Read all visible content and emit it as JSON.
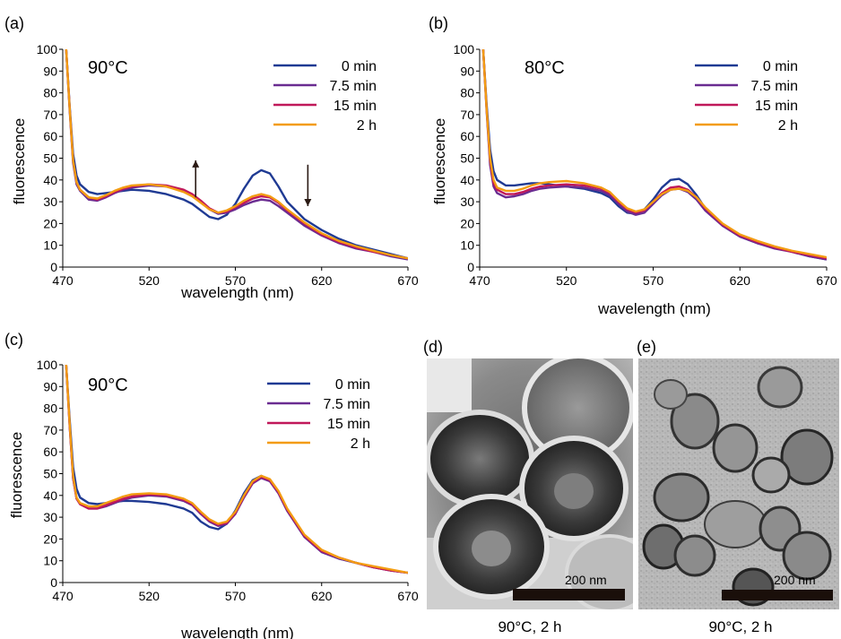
{
  "chart_data": [
    {
      "panel": "(a)",
      "type": "line",
      "annotation": "90°C",
      "xlabel": "wavelength (nm)",
      "ylabel": "fluorescence",
      "xlim": [
        470,
        670
      ],
      "ylim": [
        0,
        100
      ],
      "xticks": [
        470,
        520,
        570,
        620,
        670
      ],
      "yticks": [
        0,
        10,
        20,
        30,
        40,
        50,
        60,
        70,
        80,
        90,
        100
      ],
      "arrows": [
        {
          "direction": "up",
          "x": 547,
          "y_from": 32,
          "y_to": 49
        },
        {
          "direction": "down",
          "x": 612,
          "y_from": 47,
          "y_to": 28
        }
      ],
      "series": [
        {
          "name": "0 min",
          "color": "#1f3a93",
          "x": [
            472,
            474,
            476,
            478,
            480,
            485,
            490,
            495,
            500,
            505,
            510,
            520,
            530,
            540,
            545,
            550,
            555,
            560,
            565,
            570,
            575,
            580,
            585,
            590,
            595,
            600,
            610,
            620,
            630,
            640,
            650,
            660,
            670
          ],
          "y": [
            100,
            74,
            52,
            42,
            38,
            34.5,
            33.5,
            34,
            34.5,
            35,
            35.5,
            35,
            33.5,
            31,
            29,
            26,
            23,
            22,
            24,
            29,
            36,
            42,
            44.5,
            43,
            37,
            30,
            22,
            17,
            13,
            10,
            8,
            6,
            4
          ]
        },
        {
          "name": "7.5 min",
          "color": "#6a2c91",
          "x": [
            472,
            474,
            476,
            478,
            480,
            485,
            490,
            495,
            500,
            505,
            510,
            520,
            530,
            540,
            545,
            550,
            555,
            560,
            565,
            570,
            575,
            580,
            585,
            590,
            595,
            600,
            610,
            620,
            630,
            640,
            650,
            660,
            670
          ],
          "y": [
            100,
            72,
            48,
            38,
            35,
            31,
            30.5,
            32,
            34,
            35.5,
            36.5,
            37.5,
            37,
            35,
            33,
            30,
            26.5,
            24.5,
            25,
            26.5,
            28.5,
            30,
            31,
            30.5,
            28,
            25,
            19,
            14.5,
            11,
            8.5,
            7,
            5,
            3.5
          ]
        },
        {
          "name": "15 min",
          "color": "#c0185a",
          "x": [
            472,
            474,
            476,
            478,
            480,
            485,
            490,
            495,
            500,
            505,
            510,
            520,
            530,
            540,
            545,
            550,
            555,
            560,
            565,
            570,
            575,
            580,
            585,
            590,
            595,
            600,
            610,
            620,
            630,
            640,
            650,
            660,
            670
          ],
          "y": [
            100,
            73,
            49,
            39,
            35.5,
            32,
            31,
            32.5,
            34.5,
            36,
            37,
            38,
            37.5,
            35.5,
            33.5,
            30.5,
            27,
            25,
            25.5,
            27.5,
            29.5,
            31.5,
            32.5,
            32,
            29.5,
            26,
            20,
            15,
            11.5,
            9,
            7,
            5.5,
            4
          ]
        },
        {
          "name": "2 h",
          "color": "#f39c12",
          "x": [
            472,
            474,
            476,
            478,
            480,
            485,
            490,
            495,
            500,
            505,
            510,
            520,
            530,
            540,
            545,
            550,
            555,
            560,
            565,
            570,
            575,
            580,
            585,
            590,
            595,
            600,
            610,
            620,
            630,
            640,
            650,
            660,
            670
          ],
          "y": [
            100,
            73,
            49,
            39,
            35.5,
            32,
            31.5,
            33,
            35,
            36.5,
            37.5,
            38,
            37,
            34.5,
            32.5,
            29.5,
            26.5,
            25,
            26,
            28,
            30.5,
            32.5,
            33.5,
            32.5,
            30,
            26.5,
            20.5,
            15.5,
            12,
            9.5,
            7.5,
            5.5,
            4
          ]
        }
      ]
    },
    {
      "panel": "(b)",
      "type": "line",
      "annotation": "80°C",
      "xlabel": "wavelength (nm)",
      "ylabel": "fluorescence",
      "xlim": [
        470,
        670
      ],
      "ylim": [
        0,
        100
      ],
      "xticks": [
        470,
        520,
        570,
        620,
        670
      ],
      "yticks": [
        0,
        10,
        20,
        30,
        40,
        50,
        60,
        70,
        80,
        90,
        100
      ],
      "series": [
        {
          "name": "0 min",
          "color": "#1f3a93",
          "x": [
            472,
            474,
            476,
            478,
            480,
            485,
            490,
            495,
            500,
            505,
            510,
            520,
            530,
            540,
            545,
            550,
            555,
            560,
            565,
            570,
            575,
            580,
            585,
            590,
            595,
            600,
            610,
            620,
            630,
            640,
            650,
            660,
            670
          ],
          "y": [
            100,
            75,
            54,
            44,
            40,
            37.5,
            37.5,
            38,
            38.5,
            38.5,
            38,
            37,
            36,
            34,
            32,
            28,
            25,
            24.5,
            26.5,
            31,
            36.5,
            40,
            40.5,
            38,
            33,
            27,
            19,
            14,
            11,
            9,
            7,
            5,
            3.5
          ]
        },
        {
          "name": "7.5 min",
          "color": "#6a2c91",
          "x": [
            472,
            474,
            476,
            478,
            480,
            485,
            490,
            495,
            500,
            505,
            510,
            520,
            530,
            540,
            545,
            550,
            555,
            560,
            565,
            570,
            575,
            580,
            585,
            590,
            595,
            600,
            610,
            620,
            630,
            640,
            650,
            660,
            670
          ],
          "y": [
            100,
            72,
            47,
            37,
            34,
            32,
            32.5,
            33.5,
            35,
            36,
            36.5,
            37,
            36.5,
            35,
            33,
            29,
            25.5,
            24,
            25,
            29,
            33,
            35.5,
            36,
            34.5,
            31,
            26,
            19,
            14,
            11,
            8.5,
            7,
            5,
            3.5
          ]
        },
        {
          "name": "15 min",
          "color": "#c0185a",
          "x": [
            472,
            474,
            476,
            478,
            480,
            485,
            490,
            495,
            500,
            505,
            510,
            520,
            530,
            540,
            545,
            550,
            555,
            560,
            565,
            570,
            575,
            580,
            585,
            590,
            595,
            600,
            610,
            620,
            630,
            640,
            650,
            660,
            670
          ],
          "y": [
            100,
            73,
            49,
            38.5,
            35.5,
            33.5,
            33.5,
            34.5,
            36,
            37,
            37.5,
            38,
            37.5,
            36,
            34,
            30,
            26.5,
            25,
            26,
            30,
            34,
            36.5,
            37,
            35.5,
            32,
            27,
            19.5,
            14.5,
            11.5,
            9,
            7,
            5.5,
            4
          ]
        },
        {
          "name": "2 h",
          "color": "#f39c12",
          "x": [
            472,
            474,
            476,
            478,
            480,
            485,
            490,
            495,
            500,
            505,
            510,
            520,
            530,
            540,
            545,
            550,
            555,
            560,
            565,
            570,
            575,
            580,
            585,
            590,
            595,
            600,
            610,
            620,
            630,
            640,
            650,
            660,
            670
          ],
          "y": [
            100,
            73,
            50,
            40,
            36.5,
            35,
            35,
            36,
            37.5,
            38.5,
            39,
            39.5,
            38.5,
            36.5,
            34.5,
            30.5,
            27,
            25.5,
            26.5,
            30,
            33.5,
            35.5,
            36,
            35,
            32,
            27.5,
            20,
            15,
            12,
            9.5,
            7.5,
            6,
            4.5
          ]
        }
      ]
    },
    {
      "panel": "(c)",
      "type": "line",
      "annotation": "90°C",
      "xlabel": "wavelength (nm)",
      "ylabel": "fluorescence",
      "xlim": [
        470,
        670
      ],
      "ylim": [
        0,
        100
      ],
      "xticks": [
        470,
        520,
        570,
        620,
        670
      ],
      "yticks": [
        0,
        10,
        20,
        30,
        40,
        50,
        60,
        70,
        80,
        90,
        100
      ],
      "series": [
        {
          "name": "0 min",
          "color": "#1f3a93",
          "x": [
            472,
            474,
            476,
            478,
            480,
            485,
            490,
            495,
            500,
            505,
            510,
            520,
            530,
            540,
            545,
            550,
            555,
            560,
            565,
            570,
            575,
            580,
            585,
            590,
            595,
            600,
            610,
            620,
            630,
            640,
            650,
            660,
            670
          ],
          "y": [
            100,
            75,
            53,
            43,
            39,
            36.5,
            36,
            36.5,
            37,
            37.5,
            37.5,
            37,
            36,
            34,
            32,
            28,
            25.5,
            24.5,
            27,
            33,
            41,
            47,
            49,
            47,
            41,
            33,
            21,
            14,
            11,
            9,
            7,
            5.5,
            4.5
          ]
        },
        {
          "name": "7.5 min",
          "color": "#6a2c91",
          "x": [
            472,
            474,
            476,
            478,
            480,
            485,
            490,
            495,
            500,
            505,
            510,
            520,
            530,
            540,
            545,
            550,
            555,
            560,
            565,
            570,
            575,
            580,
            585,
            590,
            595,
            600,
            610,
            620,
            630,
            640,
            650,
            660,
            670
          ],
          "y": [
            100,
            72,
            48,
            38.5,
            36,
            34,
            34,
            35,
            36.5,
            38,
            39,
            40,
            39.5,
            37.5,
            35.5,
            31.5,
            28,
            26,
            27,
            31.5,
            39,
            45.5,
            48,
            46.5,
            41,
            33,
            21,
            14,
            11,
            9,
            7,
            5.5,
            4.5
          ]
        },
        {
          "name": "15 min",
          "color": "#c0185a",
          "x": [
            472,
            474,
            476,
            478,
            480,
            485,
            490,
            495,
            500,
            505,
            510,
            520,
            530,
            540,
            545,
            550,
            555,
            560,
            565,
            570,
            575,
            580,
            585,
            590,
            595,
            600,
            610,
            620,
            630,
            640,
            650,
            660,
            670
          ],
          "y": [
            100,
            72,
            48,
            38.5,
            36,
            34,
            34,
            35.5,
            37,
            38.5,
            39.5,
            40.5,
            40,
            38,
            36,
            32,
            28.5,
            26.5,
            27.5,
            32,
            39.5,
            46,
            48.5,
            47,
            41.5,
            33.5,
            21.5,
            14.5,
            11.5,
            9,
            7,
            5.5,
            4.5
          ]
        },
        {
          "name": "2 h",
          "color": "#f39c12",
          "x": [
            472,
            474,
            476,
            478,
            480,
            485,
            490,
            495,
            500,
            505,
            510,
            520,
            530,
            540,
            545,
            550,
            555,
            560,
            565,
            570,
            575,
            580,
            585,
            590,
            595,
            600,
            610,
            620,
            630,
            640,
            650,
            660,
            670
          ],
          "y": [
            100,
            73,
            49,
            39,
            36.5,
            35,
            35,
            36.5,
            38,
            39.5,
            40.5,
            41,
            40.5,
            38.5,
            36.5,
            32.5,
            29,
            27,
            28,
            32.5,
            40,
            46.5,
            49,
            47.5,
            42,
            34,
            22,
            15,
            11.5,
            9,
            7.5,
            6,
            4.5
          ]
        }
      ]
    }
  ],
  "micrographs": [
    {
      "panel": "(d)",
      "scale_label": "200 nm",
      "caption": "90°C, 2 h"
    },
    {
      "panel": "(e)",
      "scale_label": "200 nm",
      "caption": "90°C, 2 h"
    }
  ]
}
